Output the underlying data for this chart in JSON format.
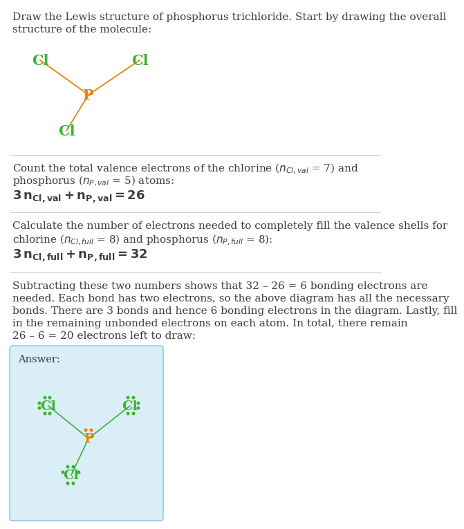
{
  "title_text": "Draw the Lewis structure of phosphorus trichloride. Start by drawing the overall\nstructure of the molecule:",
  "section1_line1": "Count the total valence electrons of the chlorine (",
  "section1_line2": "phosphorus (",
  "section1_eq": "3 $n_{Cl,val}$ + $n_{P,val}$ = 26",
  "section2_line1": "Calculate the number of electrons needed to completely fill the valence shells for",
  "section2_line2": "chlorine (",
  "section2_eq": "3 $n_{Cl,full}$ + $n_{P,full}$ = 32",
  "section3_text": "Subtracting these two numbers shows that 32 – 26 = 6 bonding electrons are\nneeded. Each bond has two electrons, so the above diagram has all the necessary\nbonds. There are 3 bonds and hence 6 bonding electrons in the diagram. Lastly, fill\nin the remaining unbonded electrons on each atom. In total, there remain\n26 – 6 = 20 electrons left to draw:",
  "answer_label": "Answer:",
  "cl_color": "#3cb52e",
  "p_color": "#e8820c",
  "bond_color_top": "#e8820c",
  "bond_color_answer": "#3cb52e",
  "answer_box_fill": "#daeef8",
  "answer_box_edge": "#88c4e0",
  "bg_color": "#ffffff",
  "text_color": "#3d3d3d",
  "sep_color": "#cccccc",
  "font_size_title": 11,
  "font_size_body": 11,
  "font_size_atom_top": 15,
  "font_size_atom_ans": 14,
  "font_size_eq": 12,
  "font_size_answer_label": 10.5
}
